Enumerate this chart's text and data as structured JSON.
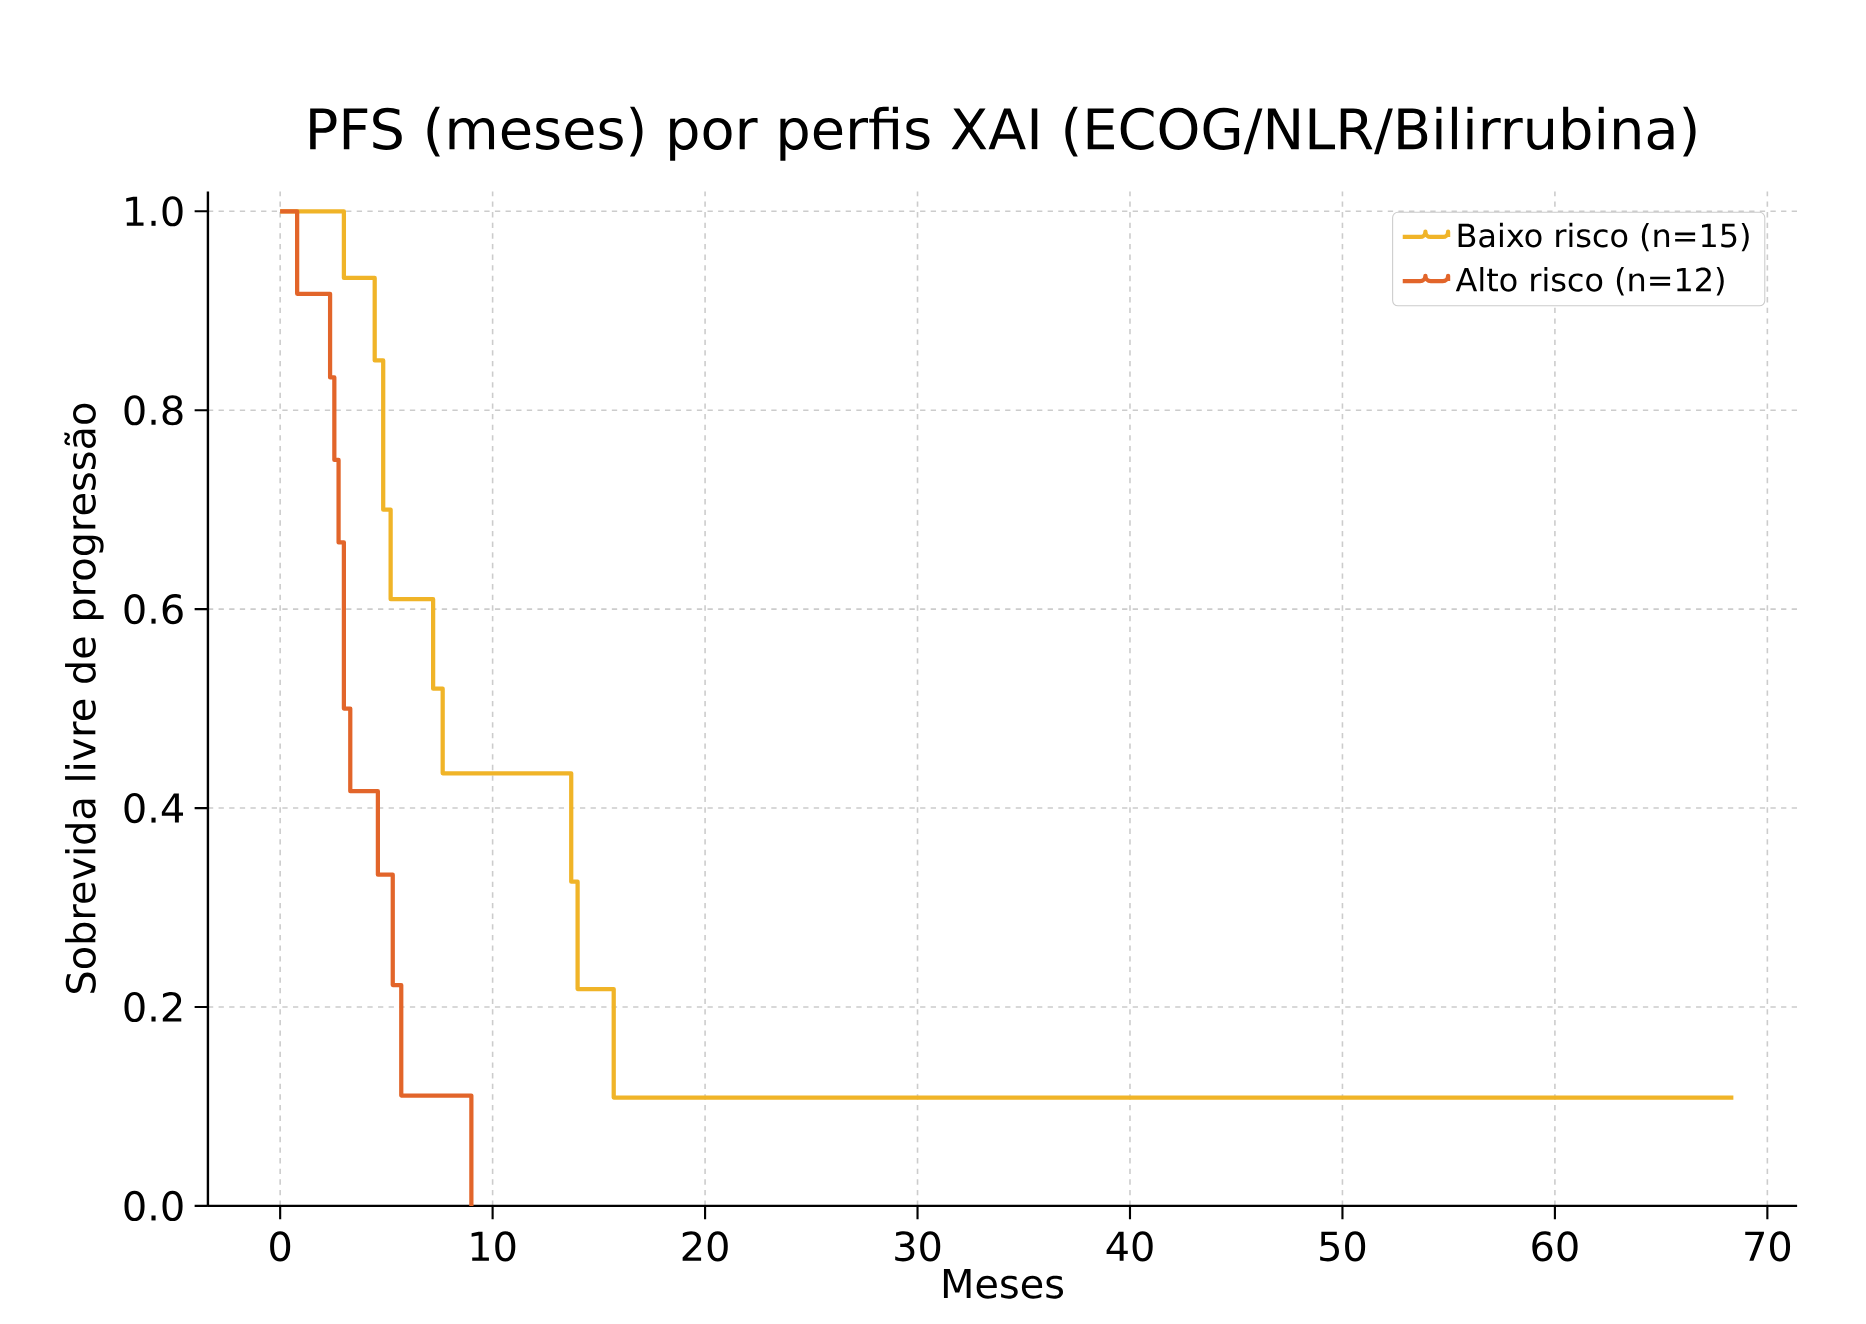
{
  "chart_data": {
    "type": "step",
    "title": "PFS (meses) por perfis XAI (ECOG/NLR/Bilirrubina)",
    "xlabel": "Meses",
    "ylabel": "Sobrevida livre de progressão",
    "series": [
      {
        "name": "Baixo risco (n=15)",
        "color": "#f0b428",
        "x": [
          0,
          3.0,
          4.45,
          4.85,
          5.2,
          7.2,
          7.65,
          13.7,
          14.0,
          15.7,
          68.4
        ],
        "values": [
          1,
          0.933,
          0.85,
          0.7,
          0.61,
          0.52,
          0.435,
          0.326,
          0.218,
          0.109,
          0.109
        ]
      },
      {
        "name": "Alto risco (n=12)",
        "color": "#e2652a",
        "x": [
          0,
          0.8,
          2.35,
          2.55,
          2.75,
          3.0,
          3.3,
          4.6,
          5.3,
          5.7,
          9.0
        ],
        "values": [
          1,
          0.917,
          0.833,
          0.75,
          0.667,
          0.5,
          0.417,
          0.333,
          0.222,
          0.111,
          0
        ]
      }
    ],
    "xlim": [
      -3.4,
      71.4
    ],
    "ylim": [
      0,
      1.02
    ],
    "xticks": [
      0,
      10,
      20,
      30,
      40,
      50,
      60,
      70
    ],
    "yticks": [
      {
        "value": 0,
        "label": "0.0"
      },
      {
        "value": 0.2,
        "label": "0.2"
      },
      {
        "value": 0.4,
        "label": "0.4"
      },
      {
        "value": 0.6,
        "label": "0.6"
      },
      {
        "value": 0.8,
        "label": "0.8"
      },
      {
        "value": 1,
        "label": "1.0"
      }
    ],
    "grid": true,
    "legend": "top right",
    "line_style": "solid",
    "marker": "none"
  }
}
